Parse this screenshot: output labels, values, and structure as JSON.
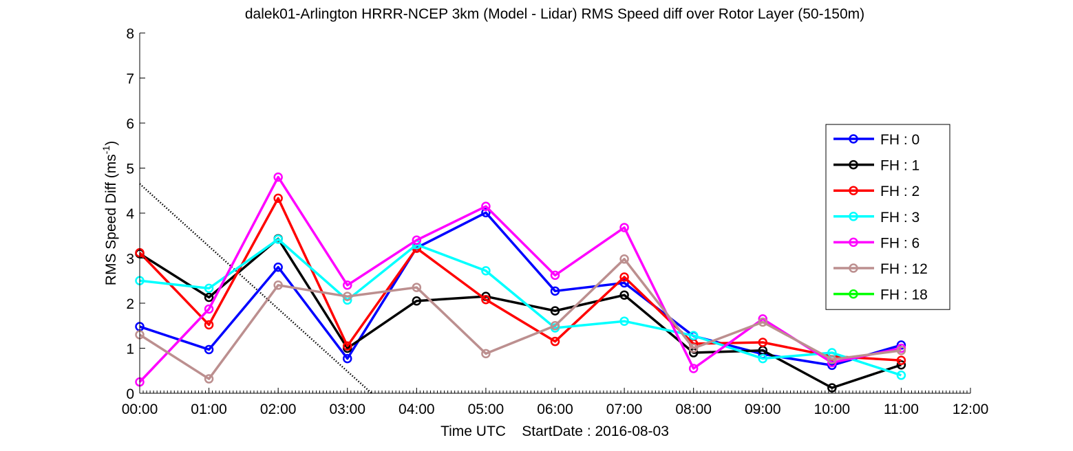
{
  "chart_data": {
    "type": "line",
    "title": "dalek01-Arlington HRRR-NCEP 3km (Model - Lidar) RMS Speed diff over Rotor Layer (50-150m)",
    "xlabel": "Time UTC    StartDate : 2016-08-03",
    "ylabel_main": "RMS Speed Diff (ms",
    "ylabel_sup": "-1",
    "ylabel_close": ")",
    "x_ticks": [
      "00:00",
      "01:00",
      "02:00",
      "03:00",
      "04:00",
      "05:00",
      "06:00",
      "07:00",
      "08:00",
      "09:00",
      "10:00",
      "11:00",
      "12:00"
    ],
    "y_ticks": [
      "0",
      "1",
      "2",
      "3",
      "4",
      "5",
      "6",
      "7",
      "8"
    ],
    "xlim": [
      0,
      12
    ],
    "ylim": [
      0,
      8
    ],
    "grid": false,
    "legend_position": "right",
    "series": [
      {
        "name": "FH : 0",
        "color": "#0000ff",
        "values": [
          1.48,
          0.97,
          2.8,
          0.77,
          3.23,
          4.01,
          2.27,
          2.45,
          1.27,
          0.87,
          0.62,
          1.07
        ]
      },
      {
        "name": "FH : 1",
        "color": "#000000",
        "values": [
          3.1,
          2.13,
          3.43,
          1.0,
          2.05,
          2.15,
          1.83,
          2.18,
          0.9,
          0.95,
          0.12,
          0.63
        ]
      },
      {
        "name": "FH : 2",
        "color": "#ff0000",
        "values": [
          3.12,
          1.52,
          4.33,
          1.05,
          3.22,
          2.08,
          1.15,
          2.58,
          1.1,
          1.13,
          0.82,
          0.73
        ]
      },
      {
        "name": "FH : 3",
        "color": "#00ffff",
        "values": [
          2.5,
          2.33,
          3.42,
          2.07,
          3.3,
          2.72,
          1.45,
          1.6,
          1.28,
          0.77,
          0.9,
          0.4
        ]
      },
      {
        "name": "FH : 6",
        "color": "#ff00ff",
        "values": [
          0.25,
          1.87,
          4.8,
          2.4,
          3.4,
          4.15,
          2.62,
          3.68,
          0.55,
          1.65,
          0.68,
          1.0
        ]
      },
      {
        "name": "FH : 12",
        "color": "#bc8f8f",
        "values": [
          1.3,
          0.32,
          2.4,
          2.15,
          2.35,
          0.88,
          1.5,
          2.98,
          1.0,
          1.58,
          0.75,
          0.95
        ]
      },
      {
        "name": "FH : 18",
        "color": "#00ff00",
        "values": []
      }
    ],
    "reference_line": {
      "style": "dotted",
      "color": "#000000",
      "x": [
        0,
        3.35
      ],
      "y": [
        4.65,
        0
      ]
    }
  }
}
